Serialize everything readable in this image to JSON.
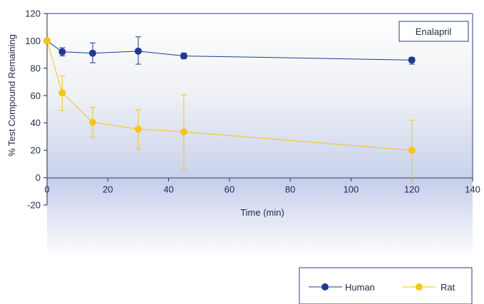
{
  "chart_data": {
    "type": "line",
    "title": "",
    "annotation": "Enalapril",
    "xlabel": "Time (min)",
    "ylabel": "% Test Compound Remaining",
    "xlim": [
      0,
      140
    ],
    "ylim": [
      -20,
      120
    ],
    "xticks": [
      0,
      20,
      40,
      60,
      80,
      100,
      120,
      140
    ],
    "yticks": [
      -20,
      0,
      20,
      40,
      60,
      80,
      100,
      120
    ],
    "x": [
      0,
      5,
      15,
      30,
      45,
      120
    ],
    "series": [
      {
        "name": "Human",
        "color": "#1f3a93",
        "values": [
          100,
          92,
          91,
          92.5,
          89,
          86
        ],
        "err_low": [
          0,
          3,
          7,
          9.5,
          2,
          3
        ],
        "err_high": [
          0,
          3,
          7.5,
          10.5,
          2,
          2
        ]
      },
      {
        "name": "Rat",
        "color": "#f5c518",
        "values": [
          100,
          62,
          40.5,
          35.5,
          33.5,
          20
        ],
        "err_low": [
          0,
          13,
          11,
          14.5,
          27.5,
          24
        ],
        "err_high": [
          0,
          12.5,
          11,
          14,
          27,
          22
        ]
      }
    ],
    "grid": false,
    "legend": "bottom-right"
  }
}
